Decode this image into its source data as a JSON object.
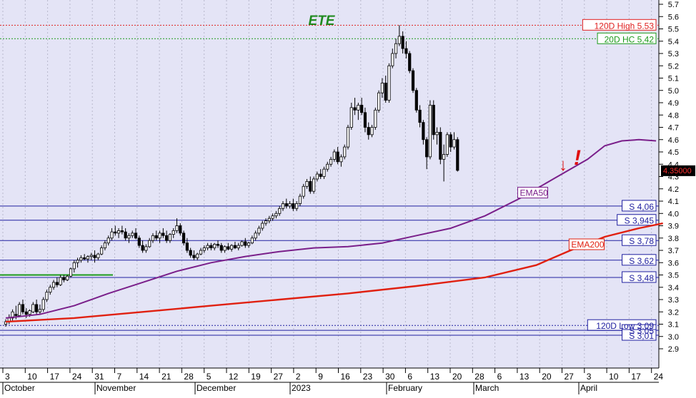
{
  "chart_data": {
    "type": "candlestick",
    "title": "ETE",
    "y_axis": {
      "min": 2.8,
      "max": 5.8,
      "ticks": [
        "2.9",
        "3.0",
        "3.1",
        "3.2",
        "3.3",
        "3.4",
        "3.5",
        "3.6",
        "3.7",
        "3.8",
        "3.9",
        "4.0",
        "4.1",
        "4.2",
        "4.3",
        "4.4",
        "4.5",
        "4.6",
        "4.7",
        "4.8",
        "4.9",
        "5.0",
        "5.1",
        "5.2",
        "5.3",
        "5.4",
        "5.5",
        "5.6",
        "5.7"
      ]
    },
    "x_axis": {
      "day_ticks": [
        "3",
        "10",
        "17",
        "24",
        "31",
        "7",
        "14",
        "21",
        "28",
        "5",
        "12",
        "19",
        "27",
        "2",
        "9",
        "16",
        "23",
        "30",
        "6",
        "13",
        "20",
        "28",
        "6",
        "13",
        "20",
        "27",
        "3",
        "10",
        "17",
        "24"
      ],
      "month_labels": [
        "October",
        "November",
        "December",
        "2023",
        "February",
        "March",
        "April"
      ]
    },
    "horizontal_levels": [
      {
        "label": "120D High 5.53",
        "value": 5.53,
        "style": "dotted",
        "color": "#e02020"
      },
      {
        "label": "20D HC 5,42",
        "value": 5.42,
        "style": "dotted",
        "color": "#1a9a1a"
      },
      {
        "label": "S 4,06",
        "value": 4.06,
        "style": "solid",
        "color": "#2020a0"
      },
      {
        "label": "S 3,945",
        "value": 3.945,
        "style": "solid",
        "color": "#2020a0"
      },
      {
        "label": "S 3,78",
        "value": 3.78,
        "style": "solid",
        "color": "#2020a0"
      },
      {
        "label": "S 3,62",
        "value": 3.62,
        "style": "solid",
        "color": "#2020a0"
      },
      {
        "label": "S 3,48",
        "value": 3.48,
        "style": "solid",
        "color": "#2020a0"
      },
      {
        "label": "120D Low 3,09",
        "value": 3.09,
        "style": "dotted",
        "color": "#2020a0"
      },
      {
        "label": "S 3,05",
        "value": 3.05,
        "style": "solid",
        "color": "#2020a0"
      },
      {
        "label": "S 3,01",
        "value": 3.01,
        "style": "solid",
        "color": "#2020a0"
      }
    ],
    "last_price_label": "4.35000",
    "series": [
      {
        "name": "EMA50",
        "color": "#7a1f8a",
        "points": [
          [
            0,
            3.15
          ],
          [
            10,
            3.18
          ],
          [
            20,
            3.25
          ],
          [
            30,
            3.35
          ],
          [
            40,
            3.44
          ],
          [
            50,
            3.53
          ],
          [
            60,
            3.6
          ],
          [
            70,
            3.65
          ],
          [
            80,
            3.69
          ],
          [
            90,
            3.72
          ],
          [
            100,
            3.73
          ],
          [
            110,
            3.76
          ],
          [
            120,
            3.82
          ],
          [
            130,
            3.88
          ],
          [
            140,
            3.98
          ],
          [
            150,
            4.12
          ],
          [
            160,
            4.28
          ],
          [
            170,
            4.44
          ],
          [
            175,
            4.55
          ],
          [
            180,
            4.59
          ],
          [
            185,
            4.6
          ],
          [
            190,
            4.59
          ]
        ]
      },
      {
        "name": "EMA200",
        "color": "#e02010",
        "points": [
          [
            0,
            3.12
          ],
          [
            20,
            3.15
          ],
          [
            40,
            3.2
          ],
          [
            60,
            3.25
          ],
          [
            80,
            3.3
          ],
          [
            100,
            3.35
          ],
          [
            120,
            3.41
          ],
          [
            140,
            3.48
          ],
          [
            155,
            3.58
          ],
          [
            165,
            3.7
          ],
          [
            175,
            3.81
          ],
          [
            185,
            3.88
          ],
          [
            192,
            3.92
          ]
        ]
      }
    ],
    "ohlc": [
      [
        0,
        3.1,
        3.14,
        3.08,
        3.12
      ],
      [
        1,
        3.12,
        3.18,
        3.1,
        3.15
      ],
      [
        2,
        3.15,
        3.22,
        3.13,
        3.2
      ],
      [
        3,
        3.18,
        3.25,
        3.14,
        3.17
      ],
      [
        4,
        3.17,
        3.28,
        3.16,
        3.26
      ],
      [
        5,
        3.26,
        3.3,
        3.18,
        3.2
      ],
      [
        6,
        3.2,
        3.23,
        3.15,
        3.18
      ],
      [
        7,
        3.18,
        3.22,
        3.16,
        3.21
      ],
      [
        8,
        3.2,
        3.28,
        3.19,
        3.26
      ],
      [
        9,
        3.26,
        3.3,
        3.18,
        3.2
      ],
      [
        10,
        3.2,
        3.26,
        3.18,
        3.22
      ],
      [
        11,
        3.22,
        3.32,
        3.2,
        3.3
      ],
      [
        12,
        3.3,
        3.38,
        3.28,
        3.36
      ],
      [
        13,
        3.36,
        3.42,
        3.34,
        3.4
      ],
      [
        14,
        3.4,
        3.46,
        3.38,
        3.44
      ],
      [
        15,
        3.44,
        3.48,
        3.4,
        3.42
      ],
      [
        16,
        3.42,
        3.5,
        3.41,
        3.48
      ],
      [
        17,
        3.48,
        3.5,
        3.44,
        3.46
      ],
      [
        18,
        3.46,
        3.5,
        3.45,
        3.49
      ],
      [
        19,
        3.49,
        3.56,
        3.48,
        3.55
      ],
      [
        20,
        3.55,
        3.62,
        3.52,
        3.6
      ],
      [
        21,
        3.6,
        3.64,
        3.56,
        3.62
      ],
      [
        22,
        3.62,
        3.66,
        3.6,
        3.64
      ],
      [
        23,
        3.64,
        3.67,
        3.62,
        3.63
      ],
      [
        24,
        3.63,
        3.66,
        3.6,
        3.65
      ],
      [
        25,
        3.65,
        3.68,
        3.62,
        3.66
      ],
      [
        26,
        3.66,
        3.7,
        3.6,
        3.64
      ],
      [
        27,
        3.64,
        3.68,
        3.62,
        3.67
      ],
      [
        28,
        3.67,
        3.74,
        3.66,
        3.72
      ],
      [
        29,
        3.72,
        3.78,
        3.7,
        3.76
      ],
      [
        30,
        3.76,
        3.82,
        3.74,
        3.8
      ],
      [
        31,
        3.8,
        3.88,
        3.78,
        3.85
      ],
      [
        32,
        3.85,
        3.9,
        3.82,
        3.84
      ],
      [
        33,
        3.84,
        3.88,
        3.8,
        3.86
      ],
      [
        34,
        3.86,
        3.9,
        3.83,
        3.85
      ],
      [
        35,
        3.85,
        3.88,
        3.78,
        3.8
      ],
      [
        36,
        3.8,
        3.84,
        3.76,
        3.82
      ],
      [
        37,
        3.82,
        3.86,
        3.8,
        3.84
      ],
      [
        38,
        3.84,
        3.88,
        3.79,
        3.8
      ],
      [
        39,
        3.8,
        3.82,
        3.72,
        3.74
      ],
      [
        40,
        3.74,
        3.78,
        3.68,
        3.7
      ],
      [
        41,
        3.7,
        3.75,
        3.68,
        3.73
      ],
      [
        42,
        3.73,
        3.8,
        3.72,
        3.78
      ],
      [
        43,
        3.78,
        3.84,
        3.76,
        3.82
      ],
      [
        44,
        3.82,
        3.86,
        3.78,
        3.8
      ],
      [
        45,
        3.8,
        3.86,
        3.76,
        3.84
      ],
      [
        46,
        3.84,
        3.88,
        3.8,
        3.82
      ],
      [
        47,
        3.82,
        3.86,
        3.76,
        3.78
      ],
      [
        48,
        3.78,
        3.84,
        3.76,
        3.83
      ],
      [
        49,
        3.83,
        3.88,
        3.8,
        3.86
      ],
      [
        50,
        3.86,
        3.96,
        3.84,
        3.9
      ],
      [
        51,
        3.9,
        3.92,
        3.82,
        3.84
      ],
      [
        52,
        3.84,
        3.86,
        3.74,
        3.76
      ],
      [
        53,
        3.76,
        3.8,
        3.68,
        3.7
      ],
      [
        54,
        3.7,
        3.72,
        3.64,
        3.66
      ],
      [
        55,
        3.66,
        3.7,
        3.62,
        3.64
      ],
      [
        56,
        3.64,
        3.68,
        3.62,
        3.67
      ],
      [
        57,
        3.67,
        3.72,
        3.66,
        3.7
      ],
      [
        58,
        3.7,
        3.74,
        3.68,
        3.72
      ],
      [
        59,
        3.72,
        3.76,
        3.7,
        3.74
      ],
      [
        60,
        3.74,
        3.76,
        3.7,
        3.72
      ],
      [
        61,
        3.72,
        3.76,
        3.7,
        3.75
      ],
      [
        62,
        3.75,
        3.78,
        3.72,
        3.74
      ],
      [
        63,
        3.74,
        3.76,
        3.68,
        3.7
      ],
      [
        64,
        3.7,
        3.74,
        3.68,
        3.73
      ],
      [
        65,
        3.73,
        3.76,
        3.7,
        3.71
      ],
      [
        66,
        3.71,
        3.75,
        3.69,
        3.74
      ],
      [
        67,
        3.74,
        3.77,
        3.71,
        3.72
      ],
      [
        68,
        3.72,
        3.76,
        3.7,
        3.74
      ],
      [
        69,
        3.74,
        3.78,
        3.73,
        3.77
      ],
      [
        70,
        3.77,
        3.8,
        3.72,
        3.74
      ],
      [
        71,
        3.74,
        3.77,
        3.72,
        3.76
      ],
      [
        72,
        3.76,
        3.82,
        3.75,
        3.8
      ],
      [
        73,
        3.8,
        3.86,
        3.78,
        3.84
      ],
      [
        74,
        3.84,
        3.9,
        3.82,
        3.88
      ],
      [
        75,
        3.88,
        3.94,
        3.86,
        3.92
      ],
      [
        76,
        3.92,
        3.96,
        3.9,
        3.94
      ],
      [
        77,
        3.94,
        3.98,
        3.92,
        3.96
      ],
      [
        78,
        3.96,
        4.0,
        3.94,
        3.98
      ],
      [
        79,
        3.98,
        4.02,
        3.96,
        4.0
      ],
      [
        80,
        4.0,
        4.06,
        3.98,
        4.04
      ],
      [
        81,
        4.04,
        4.1,
        4.02,
        4.08
      ],
      [
        82,
        4.08,
        4.12,
        4.04,
        4.06
      ],
      [
        83,
        4.06,
        4.1,
        4.04,
        4.08
      ],
      [
        84,
        4.08,
        4.12,
        4.02,
        4.04
      ],
      [
        85,
        4.04,
        4.1,
        4.02,
        4.08
      ],
      [
        86,
        4.08,
        4.16,
        4.06,
        4.14
      ],
      [
        87,
        4.14,
        4.24,
        4.12,
        4.22
      ],
      [
        88,
        4.22,
        4.28,
        4.2,
        4.26
      ],
      [
        89,
        4.26,
        4.3,
        4.16,
        4.18
      ],
      [
        90,
        4.18,
        4.3,
        4.16,
        4.28
      ],
      [
        91,
        4.28,
        4.34,
        4.26,
        4.32
      ],
      [
        92,
        4.32,
        4.36,
        4.28,
        4.3
      ],
      [
        93,
        4.3,
        4.38,
        4.28,
        4.36
      ],
      [
        94,
        4.36,
        4.42,
        4.34,
        4.4
      ],
      [
        95,
        4.4,
        4.46,
        4.38,
        4.44
      ],
      [
        96,
        4.44,
        4.52,
        4.42,
        4.5
      ],
      [
        97,
        4.5,
        4.54,
        4.4,
        4.42
      ],
      [
        98,
        4.42,
        4.48,
        4.38,
        4.46
      ],
      [
        99,
        4.46,
        4.56,
        4.44,
        4.54
      ],
      [
        100,
        4.54,
        4.72,
        4.52,
        4.7
      ],
      [
        101,
        4.7,
        4.9,
        4.68,
        4.86
      ],
      [
        102,
        4.86,
        4.94,
        4.8,
        4.84
      ],
      [
        103,
        4.84,
        4.9,
        4.76,
        4.88
      ],
      [
        104,
        4.88,
        4.94,
        4.8,
        4.82
      ],
      [
        105,
        4.82,
        4.86,
        4.66,
        4.7
      ],
      [
        106,
        4.7,
        4.74,
        4.6,
        4.64
      ],
      [
        107,
        4.64,
        4.72,
        4.62,
        4.7
      ],
      [
        108,
        4.7,
        4.86,
        4.68,
        4.84
      ],
      [
        109,
        4.84,
        5.0,
        4.82,
        4.98
      ],
      [
        110,
        4.98,
        5.1,
        4.94,
        5.06
      ],
      [
        111,
        5.06,
        5.12,
        4.9,
        4.92
      ],
      [
        112,
        4.92,
        5.22,
        4.9,
        5.2
      ],
      [
        113,
        5.2,
        5.34,
        5.18,
        5.3
      ],
      [
        114,
        5.3,
        5.42,
        5.26,
        5.38
      ],
      [
        115,
        5.38,
        5.53,
        5.36,
        5.44
      ],
      [
        116,
        5.44,
        5.48,
        5.3,
        5.34
      ],
      [
        117,
        5.34,
        5.4,
        5.26,
        5.3
      ],
      [
        118,
        5.3,
        5.32,
        5.14,
        5.16
      ],
      [
        119,
        5.16,
        5.18,
        4.98,
        5.0
      ],
      [
        120,
        5.0,
        5.02,
        4.82,
        4.84
      ],
      [
        121,
        4.84,
        4.88,
        4.7,
        4.74
      ],
      [
        122,
        4.74,
        4.76,
        4.56,
        4.6
      ],
      [
        123,
        4.6,
        4.62,
        4.36,
        4.46
      ],
      [
        124,
        4.46,
        4.92,
        4.44,
        4.88
      ],
      [
        125,
        4.88,
        4.92,
        4.6,
        4.64
      ],
      [
        126,
        4.64,
        4.7,
        4.56,
        4.66
      ],
      [
        127,
        4.66,
        4.7,
        4.4,
        4.44
      ],
      [
        128,
        4.44,
        4.56,
        4.26,
        4.48
      ],
      [
        129,
        4.48,
        4.66,
        4.46,
        4.64
      ],
      [
        130,
        4.64,
        4.66,
        4.5,
        4.54
      ],
      [
        131,
        4.54,
        4.66,
        4.52,
        4.6
      ],
      [
        132,
        4.6,
        4.62,
        4.34,
        4.35
      ]
    ],
    "signal_marks": [
      "↓",
      "!"
    ]
  }
}
